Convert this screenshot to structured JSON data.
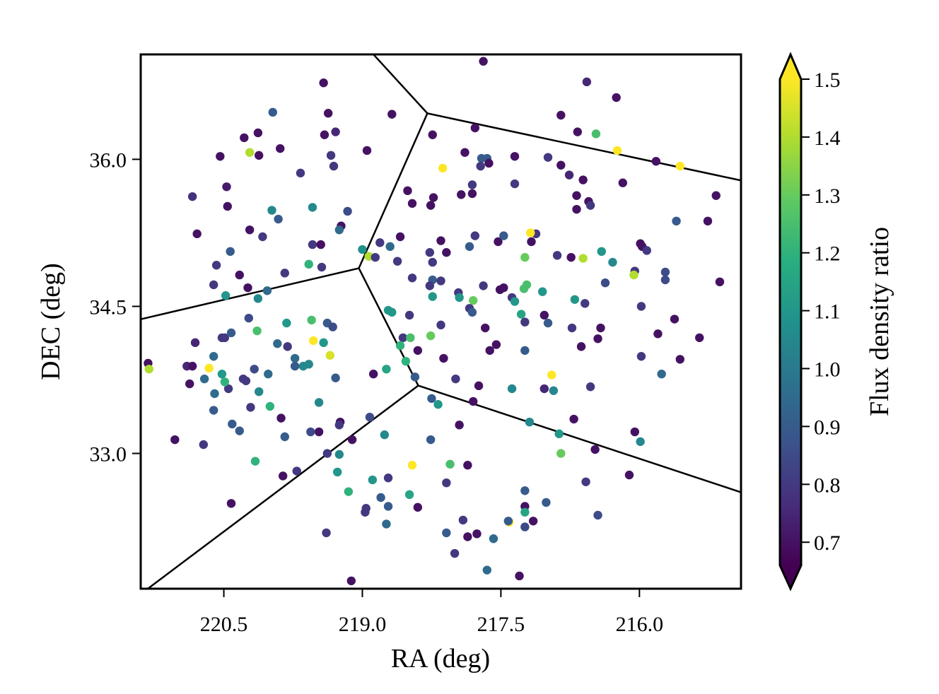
{
  "chart_data": {
    "type": "scatter",
    "xlabel": "RA (deg)",
    "ylabel": "DEC (deg)",
    "colorbar_label": "Flux density ratio",
    "colormap": "viridis",
    "clim": [
      0.66,
      1.5
    ],
    "colorbar_extend": "both",
    "xlim": [
      221.4,
      214.9
    ],
    "ylim": [
      31.62,
      37.07
    ],
    "xticks": [
      220.5,
      {
        "value": 219,
        "label": "219.0"
      },
      217.5,
      {
        "value": 216,
        "label": "216.0"
      }
    ],
    "yticks": [
      {
        "value": 33,
        "label": "33.0"
      },
      34.5,
      {
        "value": 36,
        "label": "36.0"
      }
    ],
    "cticks": [
      0.7,
      0.8,
      0.9,
      {
        "value": 1,
        "label": "1.0"
      },
      1.1,
      1.2,
      1.3,
      1.4,
      1.5
    ],
    "boundaries": [
      [
        218.885,
        37.075,
        218.296,
        36.469
      ],
      [
        218.296,
        36.469,
        214.898,
        35.784
      ],
      [
        218.296,
        36.469,
        219.038,
        34.889
      ],
      [
        219.038,
        34.889,
        221.395,
        34.37
      ],
      [
        219.038,
        34.889,
        218.395,
        33.692
      ],
      [
        218.395,
        33.692,
        214.898,
        32.603
      ],
      [
        218.395,
        33.692,
        221.319,
        31.623
      ]
    ],
    "x": [
      217.69,
      216.57,
      216.25,
      219.42,
      219.97,
      219.37,
      218.68,
      216.85,
      216.47,
      216.67,
      217.78,
      218.24,
      220.13,
      220.28,
      219.29,
      219.41,
      219.89,
      220.22,
      220.12,
      220.54,
      219.34,
      218.95,
      219.31,
      219.67,
      217.89,
      218.13,
      217.71,
      217.65,
      217.63,
      217.72,
      217.35,
      216.99,
      216.85,
      216.24,
      215.82,
      215.56,
      216.76,
      216.61,
      216.18,
      217.35,
      217.81,
      218.51,
      218.23,
      217.93,
      217.81,
      216.68,
      216.55,
      216.53,
      216.68,
      218.26,
      218.46,
      220.47,
      220.84,
      220.46,
      219.98,
      219.91,
      219.54,
      219.16,
      219.23,
      219.25,
      220.22,
      220.08,
      220.79,
      219.54,
      219.45,
      220.43,
      220.58,
      219.84,
      220.33,
      219.58,
      219.44,
      220.61,
      220.24,
      220.03,
      220.48,
      220.13,
      219.0,
      218.93,
      218.86,
      218.81,
      218.7,
      218.59,
      218.62,
      218.27,
      218.15,
      218.09,
      217.84,
      217.78,
      217.53,
      217.47,
      217.17,
      217.12,
      217.18,
      217.24,
      216.89,
      216.74,
      216.61,
      216.41,
      216.29,
      215.99,
      215.97,
      215.92,
      215.6,
      215.26,
      215.17,
      216.05,
      216.06,
      215.72,
      215.72,
      215.13,
      216.37,
      215.98,
      215.62,
      215.8,
      215.35,
      215.98,
      215.56,
      215.76,
      218.24,
      218.46,
      218.24,
      218.15,
      218.27,
      218.24,
      217.96,
      217.95,
      217.8,
      217.69,
      217.51,
      217.47,
      217.25,
      217.22,
      217.05,
      217.38,
      217.35,
      217.28,
      216.7,
      216.59,
      217.03,
      216.99,
      217.24,
      217.84,
      217.81,
      217.67,
      218.15,
      218.49,
      218.72,
      218.68,
      218.56,
      218.48,
      218.26,
      218.4,
      218.59,
      218.53,
      218.74,
      218.88,
      218.43,
      218.12,
      217.99,
      217.74,
      217.38,
      217.55,
      217.62,
      217.24,
      216.95,
      217.03,
      216.93,
      216.73,
      216.42,
      216.45,
      216.63,
      216.53,
      218.25,
      218.18,
      217.8,
      217.95,
      217.19,
      216.71,
      216.87,
      216.85,
      216.48,
      216.05,
      215.99,
      216.11,
      216.58,
      216.45,
      217.01,
      217.24,
      217.24,
      217.24,
      217.41,
      217.42,
      217.24,
      217.15,
      217.58,
      217.65,
      217.3,
      218.0,
      218.09,
      217.91,
      217.86,
      217.76,
      217.86,
      218.05,
      218.09,
      218.46,
      218.26,
      218.76,
      218.92,
      219.11,
      219.24,
      219.25,
      219.25,
      219.38,
      219.27,
      219.15,
      218.89,
      218.72,
      218.8,
      218.72,
      218.96,
      218.97,
      218.74,
      218.49,
      218.4,
      219.39,
      219.12,
      219.47,
      219.56,
      219.47,
      219.71,
      219.86,
      219.84,
      219.88,
      220.0,
      220.16,
      220.33,
      220.41,
      220.42,
      220.72,
      221.03,
      220.61,
      220.6,
      220.45,
      220.49,
      220.52,
      220.71,
      220.87,
      220.9,
      220.84,
      220.66,
      220.61,
      220.81,
      220.52,
      220.49,
      220.42,
      221.32,
      221.31,
      220.26,
      220.17,
      220.02,
      220.12,
      220.21,
      220.29,
      219.92,
      219.81,
      219.73,
      219.73,
      219.64,
      219.58,
      219.42,
      219.53,
      219.35,
      219.29,
      219.82,
      220.14,
      220.23,
      219.55,
      219.38,
      219.32
    ],
    "y": [
      37.0,
      36.79,
      36.63,
      36.78,
      36.48,
      36.47,
      36.46,
      36.45,
      36.26,
      36.28,
      36.32,
      36.25,
      36.27,
      36.22,
      36.28,
      36.25,
      36.11,
      36.07,
      36.04,
      36.03,
      36.04,
      36.09,
      35.93,
      35.86,
      36.07,
      35.91,
      36.01,
      36.01,
      35.96,
      35.93,
      36.03,
      36.02,
      35.94,
      36.09,
      35.98,
      35.93,
      35.84,
      35.79,
      35.76,
      35.75,
      35.74,
      35.68,
      35.61,
      35.64,
      35.65,
      35.63,
      35.57,
      35.53,
      35.49,
      35.53,
      35.55,
      35.72,
      35.62,
      35.52,
      35.48,
      35.39,
      35.51,
      35.47,
      35.32,
      35.28,
      35.28,
      35.21,
      35.24,
      35.13,
      35.13,
      35.06,
      34.92,
      34.84,
      34.82,
      34.93,
      34.9,
      34.72,
      34.69,
      34.66,
      34.61,
      34.58,
      35.08,
      35.01,
      35.0,
      35.15,
      35.11,
      35.21,
      34.96,
      35.05,
      35.17,
      35.05,
      35.11,
      35.22,
      35.16,
      35.22,
      35.16,
      35.24,
      35.25,
      35.0,
      35.02,
      35.0,
      34.99,
      35.06,
      34.95,
      35.14,
      35.11,
      35.07,
      35.37,
      35.37,
      35.63,
      34.86,
      34.82,
      34.85,
      34.77,
      34.75,
      34.74,
      34.5,
      34.37,
      34.22,
      34.18,
      33.99,
      33.96,
      33.81,
      34.95,
      34.79,
      34.77,
      34.76,
      34.71,
      34.6,
      34.64,
      34.59,
      34.56,
      34.71,
      34.67,
      34.69,
      34.68,
      34.72,
      34.65,
      34.59,
      34.55,
      34.42,
      34.57,
      34.53,
      34.41,
      34.33,
      34.34,
      34.48,
      34.44,
      34.28,
      34.31,
      34.41,
      34.46,
      34.44,
      34.18,
      34.18,
      34.2,
      34.05,
      34.1,
      33.94,
      33.86,
      33.81,
      33.78,
      33.97,
      33.76,
      33.69,
      33.66,
      34.11,
      34.05,
      34.05,
      33.8,
      33.66,
      33.64,
      34.28,
      34.28,
      34.17,
      34.09,
      33.68,
      33.56,
      33.5,
      33.53,
      33.29,
      33.32,
      33.35,
      33.2,
      33.0,
      33.04,
      33.22,
      33.12,
      32.78,
      32.71,
      32.37,
      32.5,
      32.62,
      32.46,
      32.4,
      32.3,
      32.31,
      32.25,
      32.31,
      32.13,
      31.81,
      31.75,
      31.98,
      32.19,
      32.32,
      32.15,
      32.18,
      32.88,
      32.89,
      32.7,
      32.88,
      33.14,
      33.19,
      33.37,
      33.14,
      33.32,
      33.29,
      32.99,
      33.0,
      32.81,
      32.61,
      32.73,
      32.75,
      32.55,
      32.46,
      32.44,
      32.4,
      32.28,
      32.58,
      32.45,
      32.19,
      31.7,
      33.22,
      33.22,
      33.52,
      32.82,
      32.77,
      33.17,
      33.36,
      33.48,
      32.92,
      33.23,
      33.3,
      32.49,
      33.09,
      33.14,
      33.44,
      33.61,
      33.66,
      33.73,
      33.81,
      33.76,
      33.71,
      33.89,
      33.89,
      33.87,
      33.99,
      34.13,
      34.18,
      34.18,
      34.23,
      33.92,
      33.86,
      33.74,
      33.86,
      33.81,
      33.63,
      33.47,
      33.76,
      34.12,
      34.09,
      33.97,
      33.89,
      33.89,
      33.91,
      34.13,
      34.15,
      34.0,
      33.77,
      34.33,
      34.25,
      34.38,
      34.36,
      34.33,
      34.29
    ],
    "color_values": [
      0.7,
      0.75,
      0.7,
      0.7,
      0.9,
      0.7,
      0.7,
      0.7,
      1.25,
      0.7,
      0.7,
      0.7,
      0.7,
      0.7,
      0.75,
      0.7,
      0.7,
      1.4,
      0.7,
      0.7,
      0.8,
      0.7,
      0.8,
      0.8,
      0.7,
      1.5,
      0.9,
      0.9,
      0.7,
      0.8,
      0.7,
      0.8,
      0.7,
      1.5,
      0.7,
      1.5,
      0.75,
      0.7,
      0.7,
      0.8,
      0.8,
      0.7,
      0.7,
      0.7,
      0.7,
      0.7,
      0.7,
      0.8,
      0.7,
      0.7,
      0.7,
      0.72,
      0.78,
      0.7,
      1.05,
      0.9,
      1.05,
      0.85,
      0.7,
      0.95,
      0.7,
      0.8,
      0.7,
      0.8,
      0.7,
      0.9,
      0.8,
      0.8,
      0.7,
      1.2,
      0.8,
      0.8,
      0.7,
      0.95,
      1.1,
      1.05,
      1.08,
      1.4,
      0.8,
      0.8,
      0.95,
      0.7,
      0.8,
      0.8,
      0.7,
      0.7,
      0.9,
      0.8,
      0.7,
      0.9,
      0.7,
      0.8,
      1.5,
      1.3,
      0.8,
      0.7,
      1.4,
      1.1,
      1.05,
      0.7,
      0.7,
      0.8,
      0.9,
      0.7,
      0.7,
      0.8,
      1.4,
      0.85,
      0.85,
      0.7,
      0.85,
      0.8,
      0.7,
      0.7,
      0.7,
      0.8,
      0.7,
      0.95,
      0.8,
      0.8,
      0.9,
      0.8,
      0.8,
      1.1,
      0.8,
      1.1,
      1.3,
      0.8,
      0.7,
      0.7,
      1.25,
      1.25,
      1.1,
      0.8,
      1.1,
      1.15,
      1.1,
      0.8,
      0.7,
      0.9,
      0.8,
      0.8,
      0.9,
      0.7,
      0.8,
      0.8,
      1.1,
      1.1,
      0.8,
      1.25,
      1.3,
      0.7,
      1.2,
      1.2,
      1.15,
      0.7,
      0.9,
      0.7,
      0.8,
      0.7,
      1.05,
      0.7,
      0.7,
      0.9,
      1.5,
      0.75,
      1.05,
      0.8,
      0.7,
      0.7,
      0.7,
      0.8,
      0.9,
      1.1,
      0.7,
      0.7,
      1.05,
      0.7,
      1.1,
      1.3,
      0.7,
      0.7,
      1.05,
      0.7,
      0.8,
      0.85,
      0.9,
      0.9,
      0.7,
      1.15,
      1.5,
      0.9,
      0.85,
      0.7,
      0.95,
      0.95,
      0.7,
      0.8,
      0.9,
      0.8,
      0.7,
      0.7,
      0.7,
      1.25,
      0.8,
      1.5,
      0.9,
      1.05,
      0.85,
      0.7,
      0.7,
      0.8,
      1.05,
      0.8,
      1.1,
      1.2,
      1.1,
      0.8,
      0.9,
      0.9,
      0.8,
      0.8,
      0.95,
      1.15,
      0.7,
      0.8,
      0.7,
      0.7,
      0.85,
      1.05,
      0.8,
      0.7,
      0.9,
      0.7,
      1.2,
      1.2,
      0.9,
      0.9,
      0.7,
      0.8,
      0.7,
      0.9,
      0.95,
      0.8,
      1.2,
      1.1,
      0.95,
      0.7,
      0.75,
      0.7,
      1.5,
      0.95,
      0.75,
      0.8,
      0.8,
      0.9,
      0.7,
      1.4,
      0.8,
      0.85,
      0.95,
      1.05,
      0.8,
      0.8,
      0.95,
      0.8,
      0.95,
      0.9,
      1.05,
      1.05,
      1.1,
      1.5,
      1.45,
      0.9,
      1.1,
      1.25,
      0.85,
      1.25,
      0.9,
      0.85
    ]
  }
}
